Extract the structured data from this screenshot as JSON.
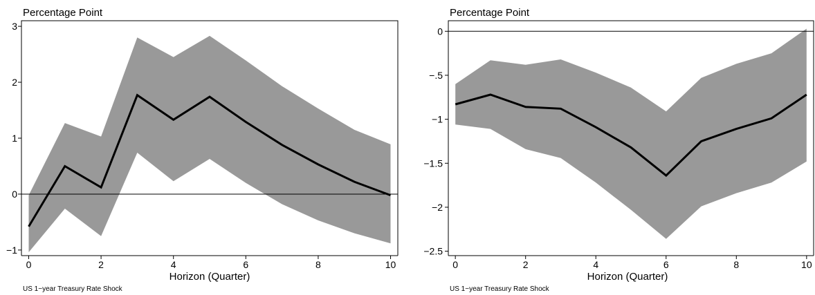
{
  "chart_data": [
    {
      "type": "line",
      "title": "",
      "unit_label": "Percentage Point",
      "xlabel": "Horizon (Quarter)",
      "ylabel": "",
      "note": "US 1−year Treasury Rate Shock",
      "x": [
        0,
        1,
        2,
        3,
        4,
        5,
        6,
        7,
        8,
        9,
        10
      ],
      "xlim": [
        -0.2,
        10.2
      ],
      "ylim": [
        -1.1,
        3.1
      ],
      "xticks": [
        0,
        2,
        4,
        6,
        8,
        10
      ],
      "xtick_labels": [
        "0",
        "2",
        "4",
        "6",
        "8",
        "10"
      ],
      "yticks": [
        -1,
        0,
        1,
        2,
        3
      ],
      "ytick_labels": [
        "−1",
        "0",
        "1",
        "2",
        "3"
      ],
      "zero_line": true,
      "grid": false,
      "band_color": "#999999",
      "line_color": "#000000",
      "series": [
        {
          "role": "estimate",
          "values": [
            -0.58,
            0.5,
            0.12,
            1.77,
            1.33,
            1.74,
            1.29,
            0.88,
            0.53,
            0.22,
            -0.02
          ]
        },
        {
          "role": "upper",
          "values": [
            -0.02,
            1.27,
            1.03,
            2.8,
            2.45,
            2.83,
            2.39,
            1.93,
            1.53,
            1.15,
            0.89
          ]
        },
        {
          "role": "lower",
          "values": [
            -1.04,
            -0.26,
            -0.75,
            0.74,
            0.23,
            0.63,
            0.2,
            -0.18,
            -0.47,
            -0.7,
            -0.88
          ]
        }
      ]
    },
    {
      "type": "line",
      "title": "",
      "unit_label": "Percentage Point",
      "xlabel": "Horizon (Quarter)",
      "ylabel": "",
      "note": "US 1−year Treasury Rate Shock",
      "x": [
        0,
        1,
        2,
        3,
        4,
        5,
        6,
        7,
        8,
        9,
        10
      ],
      "xlim": [
        -0.2,
        10.2
      ],
      "ylim": [
        -2.55,
        0.12
      ],
      "xticks": [
        0,
        2,
        4,
        6,
        8,
        10
      ],
      "xtick_labels": [
        "0",
        "2",
        "4",
        "6",
        "8",
        "10"
      ],
      "yticks": [
        0,
        -0.5,
        -1,
        -1.5,
        -2,
        -2.5
      ],
      "ytick_labels": [
        "0",
        "−.5",
        "−1",
        "−1.5",
        "−2",
        "−2.5"
      ],
      "zero_line": true,
      "grid": false,
      "band_color": "#999999",
      "line_color": "#000000",
      "series": [
        {
          "role": "estimate",
          "values": [
            -0.83,
            -0.72,
            -0.86,
            -0.88,
            -1.09,
            -1.32,
            -1.64,
            -1.25,
            -1.11,
            -0.99,
            -0.72
          ]
        },
        {
          "role": "upper",
          "values": [
            -0.6,
            -0.33,
            -0.38,
            -0.32,
            -0.47,
            -0.64,
            -0.91,
            -0.53,
            -0.37,
            -0.25,
            0.03
          ]
        },
        {
          "role": "lower",
          "values": [
            -1.06,
            -1.11,
            -1.34,
            -1.44,
            -1.72,
            -2.03,
            -2.36,
            -1.99,
            -1.84,
            -1.72,
            -1.48
          ]
        }
      ]
    }
  ]
}
